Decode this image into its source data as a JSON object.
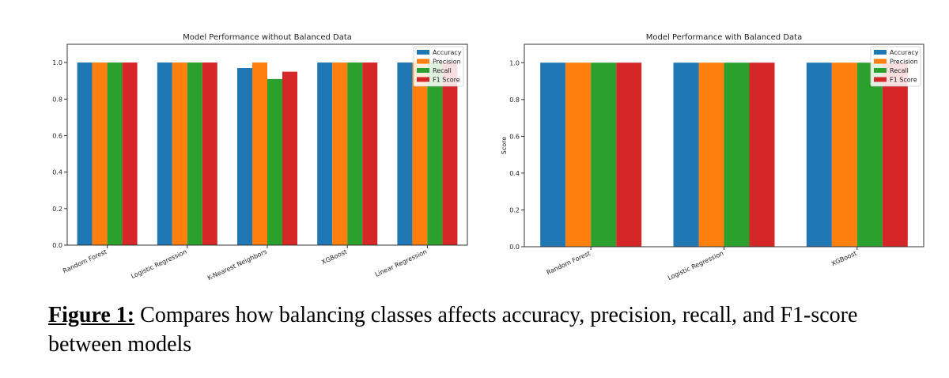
{
  "chart_data": [
    {
      "type": "bar",
      "title": "Model Performance without Balanced Data",
      "xlabel": "",
      "ylabel": "",
      "ylim": [
        0,
        1.1
      ],
      "yticks": [
        "0.0",
        "0.2",
        "0.4",
        "0.6",
        "0.8",
        "1.0"
      ],
      "grid": false,
      "legend_position": "top-right",
      "categories": [
        "Random Forest",
        "Logistic Regression",
        "K-Nearest Neighbors",
        "XGBoost",
        "Linear Regression"
      ],
      "series": [
        {
          "name": "Accuracy",
          "color": "#1f77b4",
          "values": [
            1.0,
            1.0,
            0.97,
            1.0,
            1.0
          ]
        },
        {
          "name": "Precision",
          "color": "#ff7f0e",
          "values": [
            1.0,
            1.0,
            1.0,
            1.0,
            1.0
          ]
        },
        {
          "name": "Recall",
          "color": "#2ca02c",
          "values": [
            1.0,
            1.0,
            0.91,
            1.0,
            1.0
          ]
        },
        {
          "name": "F1 Score",
          "color": "#d62728",
          "values": [
            1.0,
            1.0,
            0.95,
            1.0,
            1.0
          ]
        }
      ]
    },
    {
      "type": "bar",
      "title": "Model Performance with Balanced Data",
      "xlabel": "",
      "ylabel": "Score",
      "ylim": [
        0,
        1.1
      ],
      "yticks": [
        "0.0",
        "0.2",
        "0.4",
        "0.6",
        "0.8",
        "1.0"
      ],
      "grid": false,
      "legend_position": "top-right",
      "categories": [
        "Random Forest",
        "Logistic Regression",
        "XGBoost"
      ],
      "series": [
        {
          "name": "Accuracy",
          "color": "#1f77b4",
          "values": [
            1.0,
            1.0,
            1.0
          ]
        },
        {
          "name": "Precision",
          "color": "#ff7f0e",
          "values": [
            1.0,
            1.0,
            1.0
          ]
        },
        {
          "name": "Recall",
          "color": "#2ca02c",
          "values": [
            1.0,
            1.0,
            1.0
          ]
        },
        {
          "name": "F1 Score",
          "color": "#d62728",
          "values": [
            1.0,
            1.0,
            1.0
          ]
        }
      ]
    }
  ],
  "caption": {
    "lead": "Figure 1:",
    "text": " Compares how balancing classes affects accuracy, precision, recall, and F1-score between models"
  }
}
